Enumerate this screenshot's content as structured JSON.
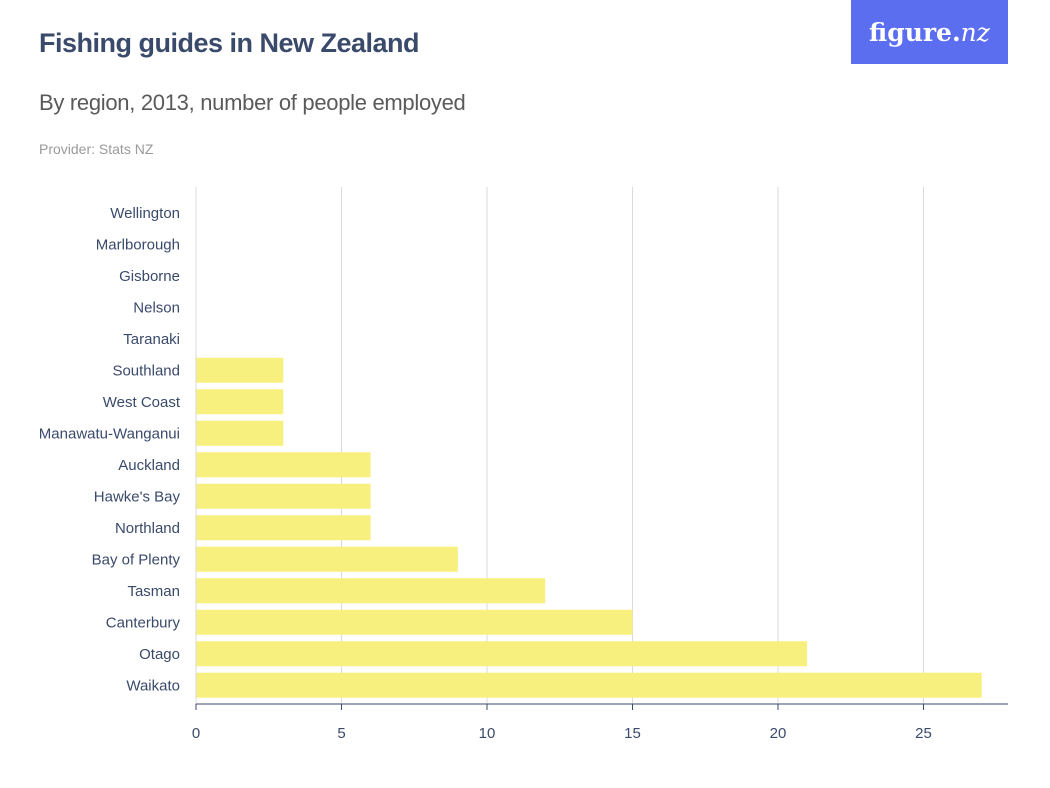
{
  "header": {
    "title": "Fishing guides in New Zealand",
    "subtitle": "By region, 2013, number of people employed",
    "provider": "Provider: Stats NZ"
  },
  "logo": {
    "text_main": "figure.",
    "text_accent": "nz"
  },
  "colors": {
    "bar": "#f8f07e",
    "grid": "#d9d9d9",
    "axis": "#3a4a6b",
    "logo_bg": "#5b6ef0"
  },
  "chart_data": {
    "type": "bar",
    "orientation": "horizontal",
    "title": "Fishing guides in New Zealand",
    "subtitle": "By region, 2013, number of people employed",
    "categories": [
      "Wellington",
      "Marlborough",
      "Gisborne",
      "Nelson",
      "Taranaki",
      "Southland",
      "West Coast",
      "Manawatu-Wanganui",
      "Auckland",
      "Hawke's Bay",
      "Northland",
      "Bay of Plenty",
      "Tasman",
      "Canterbury",
      "Otago",
      "Waikato"
    ],
    "values": [
      0,
      0,
      0,
      0,
      0,
      3,
      3,
      3,
      6,
      6,
      6,
      9,
      12,
      15,
      21,
      27
    ],
    "xlim": [
      0,
      28
    ],
    "xticks": [
      0,
      5,
      10,
      15,
      20,
      25
    ],
    "grid": true
  }
}
